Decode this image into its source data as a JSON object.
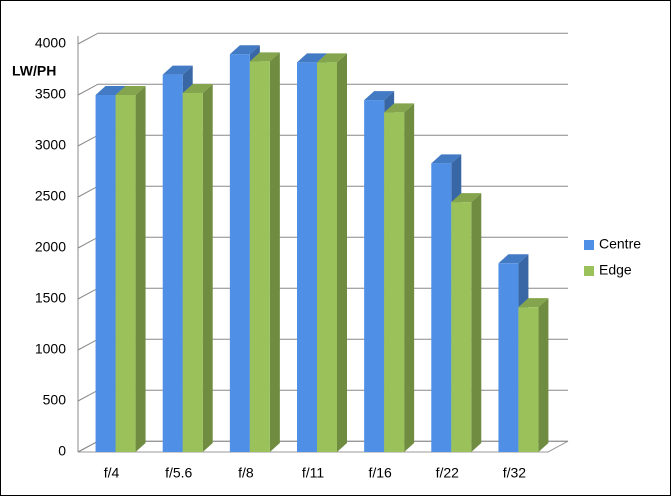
{
  "chart_data": {
    "type": "bar3d",
    "y_label": "LW/PH",
    "categories": [
      "f/4",
      "f/5.6",
      "f/8",
      "f/11",
      "f/16",
      "f/22",
      "f/32"
    ],
    "series": [
      {
        "name": "Centre",
        "color": "#4f8fe6",
        "values": [
          3500,
          3700,
          3900,
          3820,
          3450,
          2830,
          1850
        ]
      },
      {
        "name": "Edge",
        "color": "#9bc25a",
        "values": [
          3500,
          3520,
          3830,
          3820,
          3330,
          2450,
          1420
        ]
      }
    ],
    "ylim": [
      0,
      4000
    ],
    "yticks": [
      0,
      500,
      1000,
      1500,
      2000,
      2500,
      3000,
      3500,
      4000
    ],
    "grid": true,
    "legend": "right"
  }
}
